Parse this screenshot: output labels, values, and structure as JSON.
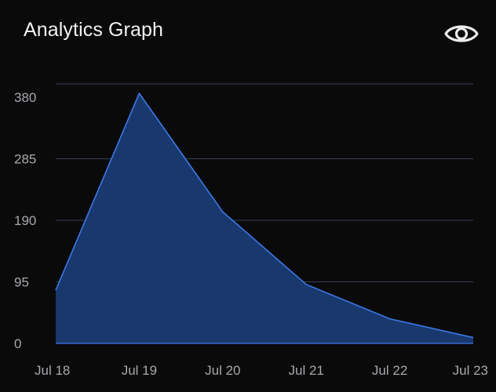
{
  "header": {
    "title": "Analytics Graph",
    "visibility_icon": "eye-icon"
  },
  "colors": {
    "background": "#0a0a0b",
    "area_fill": "#19386e",
    "line": "#3c78e6",
    "grid": "#3a3f52",
    "tick_text": "#a8a8ad"
  },
  "chart_data": {
    "type": "area",
    "categories": [
      "Jul 18",
      "Jul 19",
      "Jul 20",
      "Jul 21",
      "Jul 22",
      "Jul 23"
    ],
    "series": [
      {
        "values": [
          82,
          386,
          203,
          91,
          38,
          9
        ]
      }
    ],
    "yticks": [
      "0",
      "95",
      "190",
      "285",
      "380"
    ],
    "ylim": [
      0,
      400
    ],
    "grid": true
  }
}
